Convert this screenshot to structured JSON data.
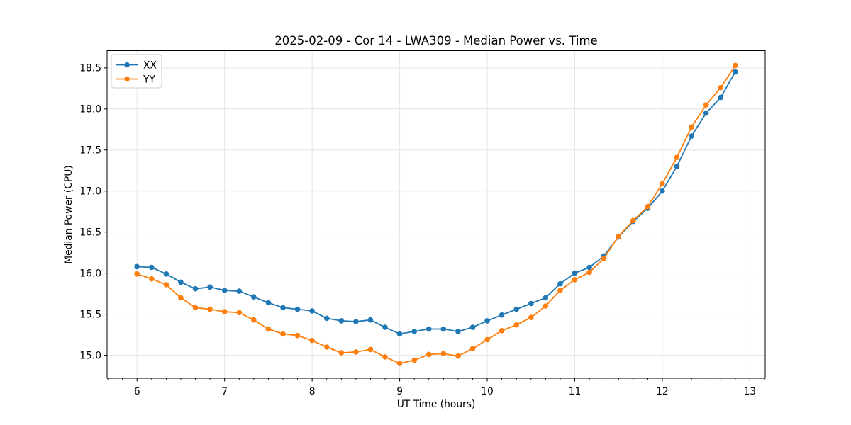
{
  "chart_data": {
    "type": "line",
    "title": "2025-02-09 - Cor 14 - LWA309 - Median Power vs. Time",
    "xlabel": "UT Time (hours)",
    "ylabel": "Median Power (CPU)",
    "xlim": [
      5.658,
      13.175
    ],
    "ylim": [
      14.72,
      18.71
    ],
    "xticks": [
      6,
      7,
      8,
      9,
      10,
      11,
      12,
      13
    ],
    "xtick_labels": [
      "6",
      "7",
      "8",
      "9",
      "10",
      "11",
      "12",
      "13"
    ],
    "yticks": [
      15.0,
      15.5,
      16.0,
      16.5,
      17.0,
      17.5,
      18.0,
      18.5
    ],
    "ytick_labels": [
      "15.0",
      "15.5",
      "16.0",
      "16.5",
      "17.0",
      "17.5",
      "18.0",
      "18.5"
    ],
    "minor_xtick_step": 0.16667,
    "grid": true,
    "legend_position": "upper left",
    "x": [
      6.0,
      6.1667,
      6.3333,
      6.5,
      6.6667,
      6.8333,
      7.0,
      7.1667,
      7.3333,
      7.5,
      7.6667,
      7.8333,
      8.0,
      8.1667,
      8.3333,
      8.5,
      8.6667,
      8.8333,
      9.0,
      9.1667,
      9.3333,
      9.5,
      9.6667,
      9.8333,
      10.0,
      10.1667,
      10.3333,
      10.5,
      10.6667,
      10.8333,
      11.0,
      11.1667,
      11.3333,
      11.5,
      11.6667,
      11.8333,
      12.0,
      12.1667,
      12.3333,
      12.5,
      12.6667,
      12.8333
    ],
    "series": [
      {
        "name": "XX",
        "color": "#1f77b4",
        "values": [
          16.08,
          16.07,
          15.99,
          15.89,
          15.81,
          15.83,
          15.79,
          15.78,
          15.71,
          15.64,
          15.58,
          15.56,
          15.54,
          15.45,
          15.42,
          15.41,
          15.43,
          15.34,
          15.26,
          15.29,
          15.32,
          15.32,
          15.29,
          15.34,
          15.42,
          15.49,
          15.56,
          15.63,
          15.7,
          15.87,
          16.0,
          16.07,
          16.21,
          16.44,
          16.63,
          16.79,
          17.0,
          17.3,
          17.67,
          17.95,
          18.14,
          18.45
        ]
      },
      {
        "name": "YY",
        "color": "#ff7f0e",
        "values": [
          15.99,
          15.93,
          15.86,
          15.7,
          15.58,
          15.56,
          15.53,
          15.52,
          15.43,
          15.32,
          15.26,
          15.24,
          15.18,
          15.1,
          15.03,
          15.04,
          15.07,
          14.98,
          14.9,
          14.94,
          15.01,
          15.02,
          14.99,
          15.08,
          15.19,
          15.3,
          15.37,
          15.46,
          15.6,
          15.79,
          15.92,
          16.01,
          16.18,
          16.45,
          16.64,
          16.81,
          17.09,
          17.41,
          17.78,
          18.05,
          18.26,
          18.53
        ]
      }
    ],
    "colors": {
      "grid": "#e6e6e6",
      "spine": "#000000",
      "background": "#ffffff"
    }
  }
}
